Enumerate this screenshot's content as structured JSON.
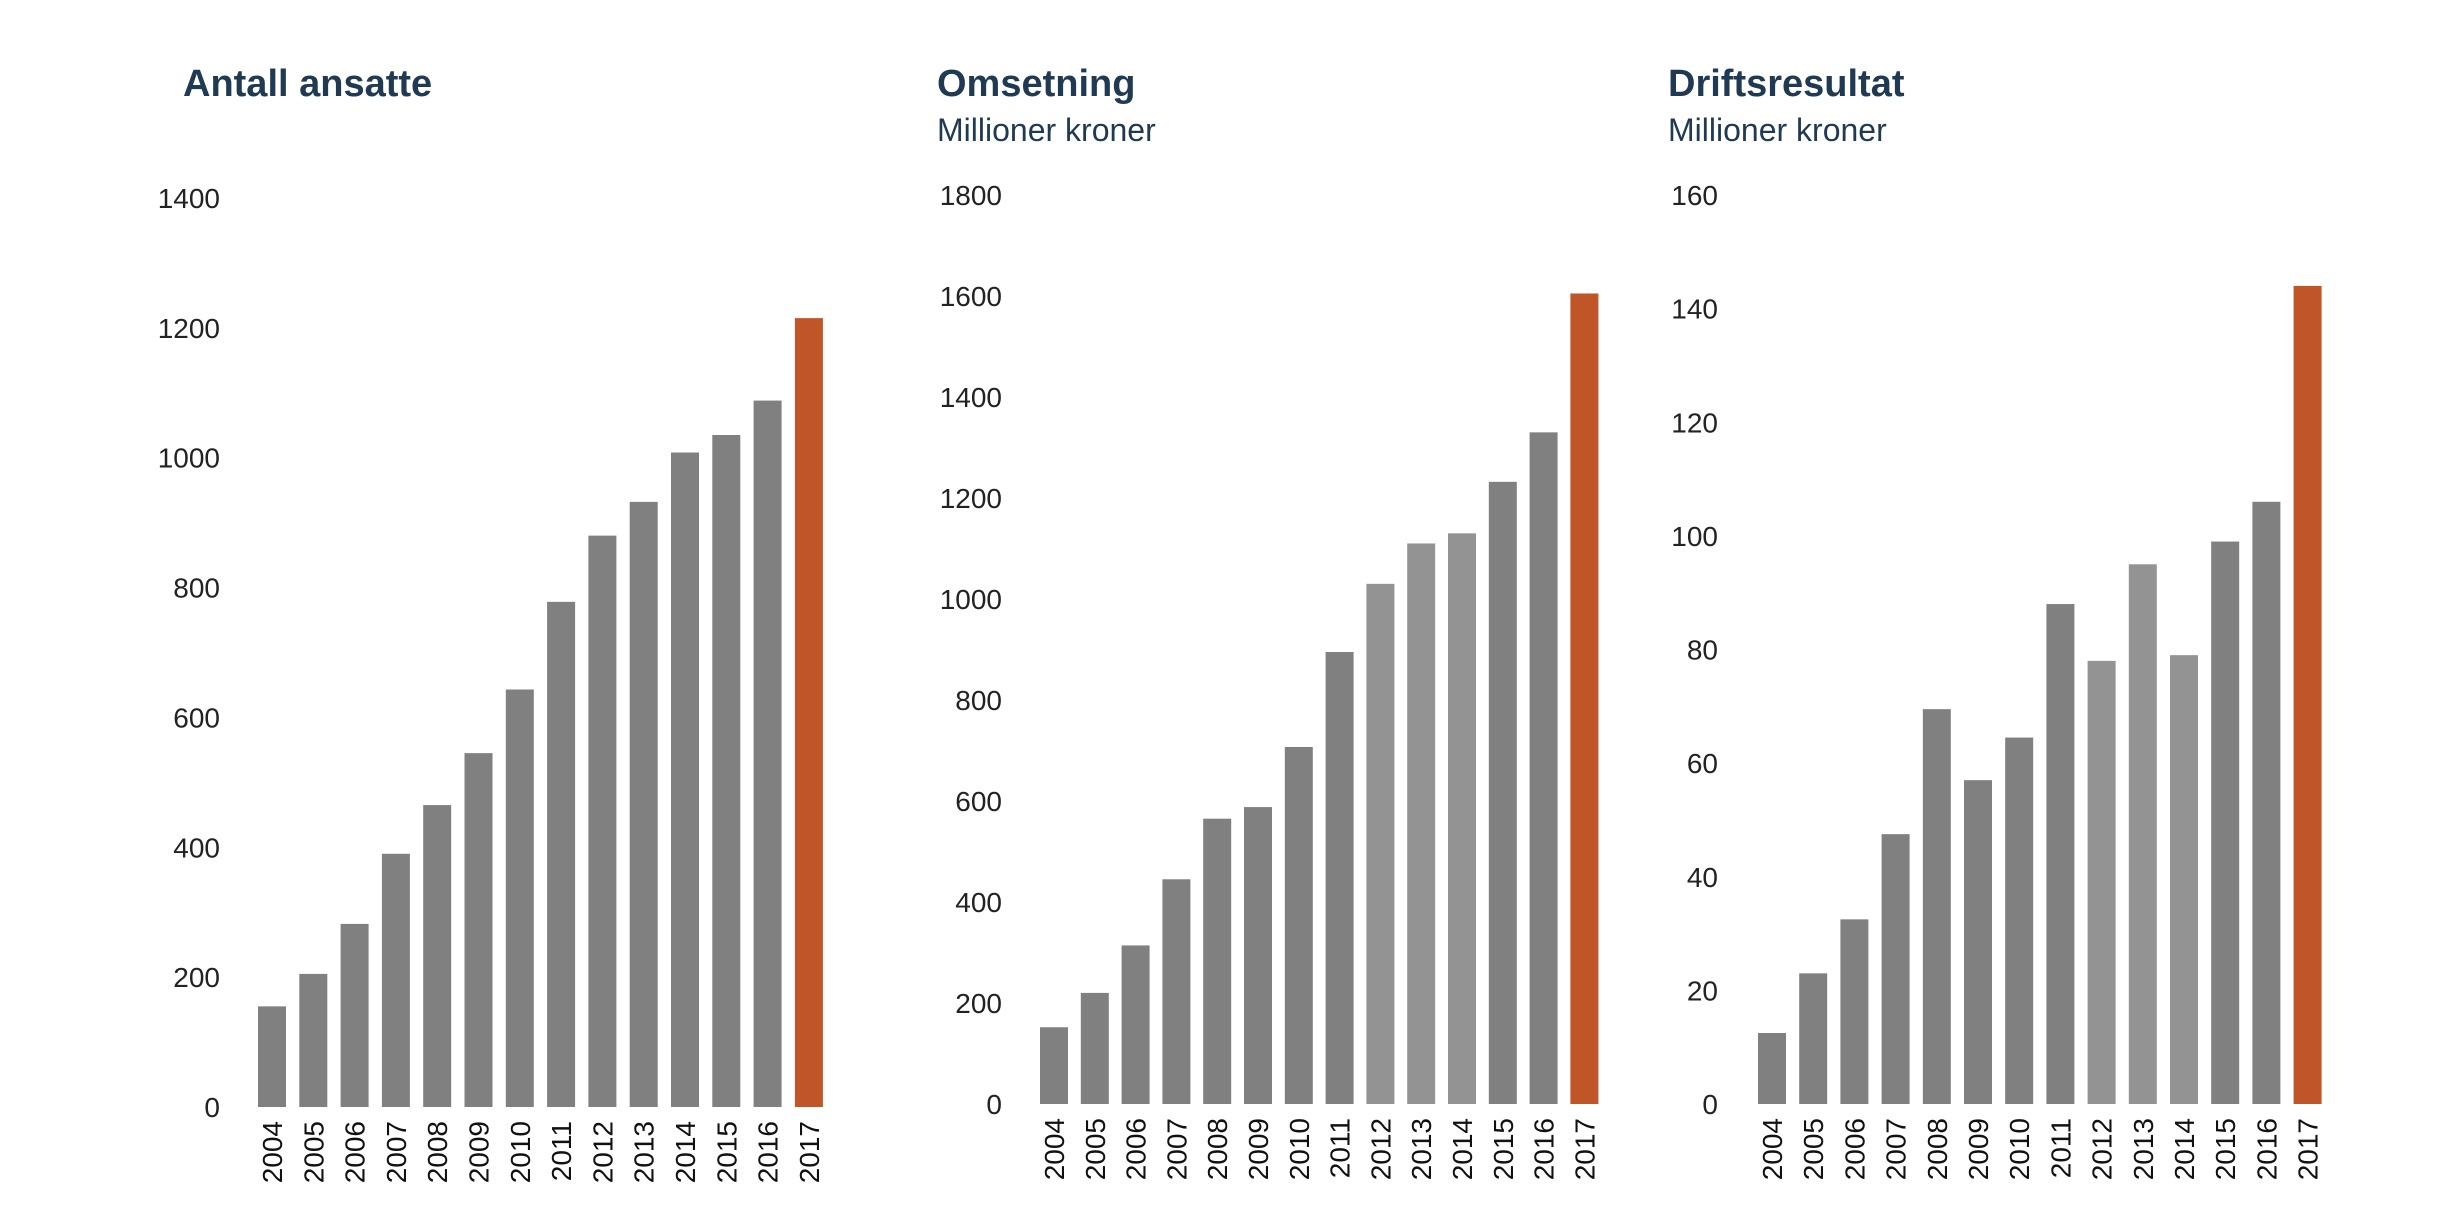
{
  "colors": {
    "bar": "#808080",
    "bar_light": "#939393",
    "highlight": "#c05527",
    "title": "#1f3a52"
  },
  "chart_data": [
    {
      "type": "bar",
      "title": "Antall ansatte",
      "subtitle": "",
      "categories": [
        "2004",
        "2005",
        "2006",
        "2007",
        "2008",
        "2009",
        "2010",
        "2011",
        "2012",
        "2013",
        "2014",
        "2015",
        "2016",
        "2017"
      ],
      "values": [
        155,
        205,
        282,
        390,
        465,
        545,
        643,
        778,
        880,
        932,
        1008,
        1035,
        1088,
        1215
      ],
      "highlight_index": 13,
      "light_indices": [],
      "yticks": [
        "0",
        "200",
        "400",
        "600",
        "800",
        "1000",
        "1200",
        "1400"
      ],
      "ylim": [
        0,
        1400
      ],
      "xlabel": "",
      "ylabel": "",
      "grid": false
    },
    {
      "type": "bar",
      "title": "Omsetning",
      "subtitle": "Millioner kroner",
      "categories": [
        "2004",
        "2005",
        "2006",
        "2007",
        "2008",
        "2009",
        "2010",
        "2011",
        "2012",
        "2013",
        "2014",
        "2015",
        "2016",
        "2017"
      ],
      "values": [
        152,
        220,
        314,
        445,
        565,
        588,
        707,
        895,
        1030,
        1110,
        1130,
        1232,
        1330,
        1605
      ],
      "highlight_index": 13,
      "light_indices": [
        8,
        9,
        10
      ],
      "yticks": [
        "0",
        "200",
        "400",
        "600",
        "800",
        "1000",
        "1200",
        "1400",
        "1600",
        "1800"
      ],
      "ylim": [
        0,
        1800
      ],
      "xlabel": "",
      "ylabel": "",
      "grid": false
    },
    {
      "type": "bar",
      "title": "Driftsresultat",
      "subtitle": "Millioner kroner",
      "categories": [
        "2004",
        "2005",
        "2006",
        "2007",
        "2008",
        "2009",
        "2010",
        "2011",
        "2012",
        "2013",
        "2014",
        "2015",
        "2016",
        "2017"
      ],
      "values": [
        12.5,
        23,
        32.5,
        47.5,
        69.5,
        57,
        64.5,
        88,
        78,
        95,
        79,
        99,
        106,
        144
      ],
      "highlight_index": 13,
      "light_indices": [
        8,
        9,
        10
      ],
      "yticks": [
        "0",
        "20",
        "40",
        "60",
        "80",
        "100",
        "120",
        "140",
        "160"
      ],
      "ylim": [
        0,
        160
      ],
      "xlabel": "",
      "ylabel": "",
      "grid": false
    }
  ]
}
